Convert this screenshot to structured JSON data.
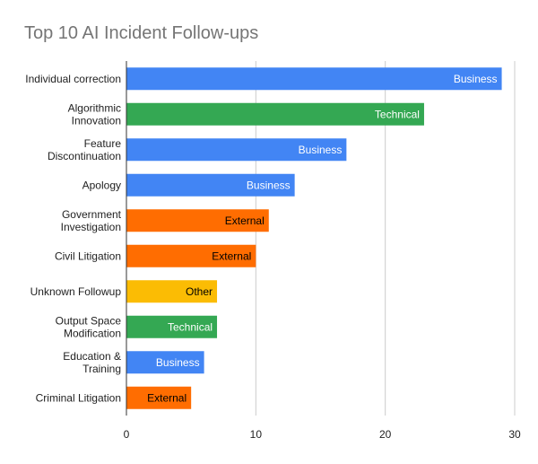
{
  "chart_data": {
    "type": "bar",
    "orientation": "horizontal",
    "title": "Top 10 AI Incident Follow-ups",
    "xlabel": "",
    "ylabel": "",
    "xlim": [
      0,
      30
    ],
    "xticks": [
      0,
      10,
      20,
      30
    ],
    "grid": true,
    "legend": "none",
    "categories": [
      [
        "Individual correction"
      ],
      [
        "Algorithmic",
        "Innovation"
      ],
      [
        "Feature",
        "Discontinuation"
      ],
      [
        "Apology"
      ],
      [
        "Government",
        "Investigation"
      ],
      [
        "Civil Litigation"
      ],
      [
        "Unknown Followup"
      ],
      [
        "Output Space",
        "Modification"
      ],
      [
        "Education &",
        "Training"
      ],
      [
        "Criminal Litigation"
      ]
    ],
    "values": [
      29,
      23,
      17,
      13,
      11,
      10,
      7,
      7,
      6,
      5
    ],
    "bar_labels": [
      "Business",
      "Technical",
      "Business",
      "Business",
      "External",
      "External",
      "Other",
      "Technical",
      "Business",
      "External"
    ],
    "label_colors": {
      "Business": "#4285f4",
      "Technical": "#34a853",
      "External": "#ff6d01",
      "Other": "#fbbc04"
    },
    "label_text_colors": {
      "Business": "#ffffff",
      "Technical": "#ffffff",
      "External": "#000000",
      "Other": "#000000"
    }
  }
}
